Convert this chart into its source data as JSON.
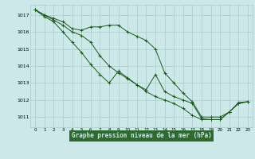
{
  "title": "Graphe pression niveau de la mer (hPa)",
  "bg_color": "#cce8e8",
  "grid_color": "#aacccc",
  "line_color": "#1a5c1a",
  "xlabel_bg": "#2d6b2d",
  "xlabel_fg": "#cce8e8",
  "xlim": [
    -0.5,
    23.5
  ],
  "ylim": [
    1010.4,
    1017.6
  ],
  "yticks": [
    1011,
    1012,
    1013,
    1014,
    1015,
    1016,
    1017
  ],
  "xticks": [
    0,
    1,
    2,
    3,
    4,
    5,
    6,
    7,
    8,
    9,
    10,
    11,
    12,
    13,
    14,
    15,
    16,
    17,
    18,
    19,
    20,
    21,
    22,
    23
  ],
  "line1_x": [
    0,
    1,
    2,
    3,
    4,
    5,
    6,
    7,
    8,
    9,
    10,
    11,
    12,
    13,
    14,
    15,
    16,
    17,
    18,
    19,
    20,
    21,
    22,
    23
  ],
  "line1_y": [
    1017.3,
    1017.0,
    1016.8,
    1016.6,
    1016.2,
    1016.1,
    1016.3,
    1016.3,
    1016.4,
    1016.4,
    1016.0,
    1015.75,
    1015.5,
    1015.0,
    1013.6,
    1013.0,
    1012.4,
    1011.9,
    1011.0,
    1011.0,
    1011.0,
    1011.3,
    1011.85,
    1011.9
  ],
  "line2_x": [
    0,
    1,
    2,
    3,
    4,
    5,
    6,
    7,
    8,
    9,
    10,
    11,
    12,
    13,
    14,
    15,
    16,
    17,
    18,
    19,
    20,
    21,
    22,
    23
  ],
  "line2_y": [
    1017.3,
    1017.0,
    1016.7,
    1016.4,
    1016.0,
    1015.8,
    1015.4,
    1014.6,
    1014.0,
    1013.6,
    1013.25,
    1012.9,
    1012.6,
    1013.5,
    1012.5,
    1012.2,
    1012.0,
    1011.8,
    1010.9,
    1010.85,
    1010.85,
    1011.3,
    1011.8,
    1011.9
  ],
  "line3_x": [
    0,
    1,
    2,
    3,
    4,
    5,
    6,
    7,
    8,
    9,
    10,
    11,
    12,
    13,
    14,
    15,
    16,
    17,
    18,
    19,
    20,
    21,
    22,
    23
  ],
  "line3_y": [
    1017.3,
    1016.9,
    1016.6,
    1016.0,
    1015.4,
    1014.8,
    1014.1,
    1013.5,
    1013.0,
    1013.7,
    1013.3,
    1012.9,
    1012.5,
    1012.2,
    1012.0,
    1011.8,
    1011.5,
    1011.1,
    1010.85,
    1010.85,
    1010.85,
    1011.3,
    1011.8,
    1011.9
  ]
}
